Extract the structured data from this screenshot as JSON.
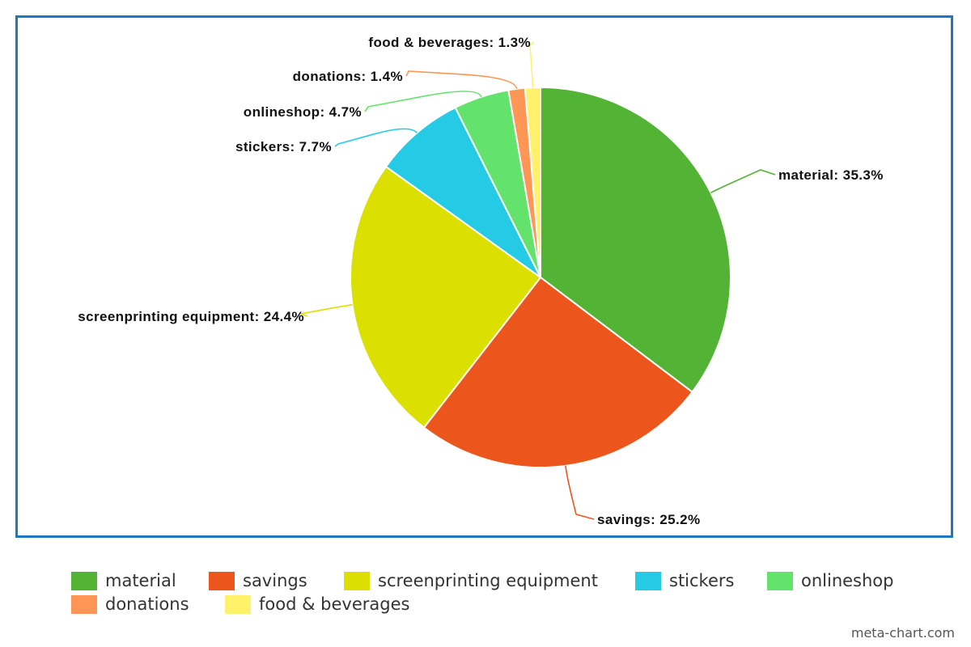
{
  "chart_data": {
    "type": "pie",
    "title": "",
    "start_angle_deg": 0,
    "direction": "clockwise",
    "legend_position": "bottom",
    "slices": [
      {
        "name": "material",
        "value": 35.3,
        "label": "material: 35.3%",
        "color": "#52b335"
      },
      {
        "name": "savings",
        "value": 25.2,
        "label": "savings: 25.2%",
        "color": "#ec561d"
      },
      {
        "name": "screenprinting equipment",
        "value": 24.4,
        "label": "screenprinting equipment: 24.4%",
        "color": "#dce000"
      },
      {
        "name": "stickers",
        "value": 7.7,
        "label": "stickers: 7.7%",
        "color": "#25cbe5"
      },
      {
        "name": "onlineshop",
        "value": 4.7,
        "label": "onlineshop: 4.7%",
        "color": "#63e36c"
      },
      {
        "name": "donations",
        "value": 1.4,
        "label": "donations: 1.4%",
        "color": "#ff9656"
      },
      {
        "name": "food & beverages",
        "value": 1.3,
        "label": "food & beverages: 1.3%",
        "color": "#fff26a"
      }
    ]
  },
  "frame_color": "#1f77c4",
  "watermark": "meta-chart.com"
}
